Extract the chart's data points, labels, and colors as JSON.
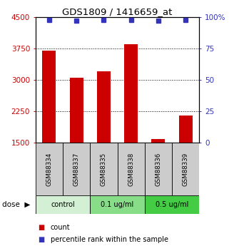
{
  "title": "GDS1809 / 1416659_at",
  "samples": [
    "GSM88334",
    "GSM88337",
    "GSM88335",
    "GSM88338",
    "GSM88336",
    "GSM88339"
  ],
  "bar_values": [
    3700,
    3050,
    3200,
    3850,
    1590,
    2150
  ],
  "dot_percentile": [
    98,
    97,
    98,
    98,
    97,
    98
  ],
  "ylim_left": [
    1500,
    4500
  ],
  "ylim_right": [
    0,
    100
  ],
  "yticks_left": [
    1500,
    2250,
    3000,
    3750,
    4500
  ],
  "yticks_right": [
    0,
    25,
    50,
    75,
    100
  ],
  "bar_color": "#cc0000",
  "dot_color": "#3333bb",
  "groups": [
    {
      "label": "control",
      "start": 0,
      "end": 2,
      "color": "#d4f0d4"
    },
    {
      "label": "0.1 ug/ml",
      "start": 2,
      "end": 4,
      "color": "#88dd88"
    },
    {
      "label": "0.5 ug/ml",
      "start": 4,
      "end": 6,
      "color": "#44cc44"
    }
  ],
  "legend_count_label": "count",
  "legend_pct_label": "percentile rank within the sample",
  "left_tick_color": "#cc0000",
  "right_tick_color": "#3333bb",
  "tick_label_fontsize": 7.5,
  "bar_width": 0.5
}
